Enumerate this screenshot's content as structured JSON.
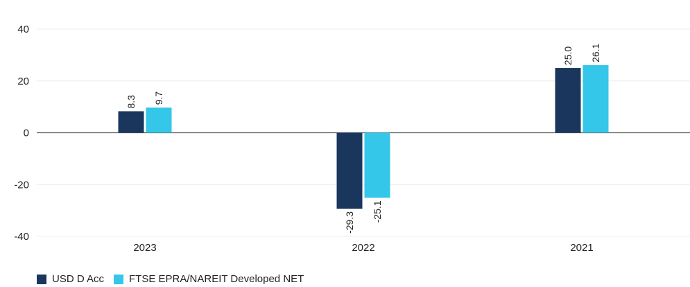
{
  "chart_data": {
    "type": "bar",
    "categories": [
      "2023",
      "2022",
      "2021"
    ],
    "series": [
      {
        "name": "USD D Acc",
        "values": [
          8.3,
          -29.3,
          25.0
        ],
        "labels": [
          "8.3",
          "-29.3",
          "25.0"
        ],
        "color": "#1b365d"
      },
      {
        "name": "FTSE EPRA/NAREIT Developed NET",
        "values": [
          9.7,
          -25.1,
          26.1
        ],
        "labels": [
          "9.7",
          "-25.1",
          "26.1"
        ],
        "color": "#35c7e9"
      }
    ],
    "yticks": [
      "40",
      "20",
      "0",
      "-20",
      "-40"
    ],
    "ylim": [
      -40,
      40
    ],
    "grid": true,
    "legend": "bottom-left"
  }
}
